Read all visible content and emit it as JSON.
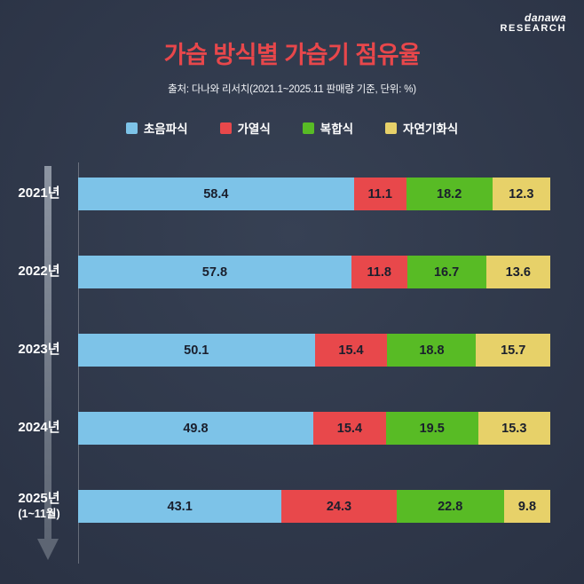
{
  "logo": {
    "line1": "danawa",
    "line2": "RESEARCH"
  },
  "header": {
    "title": "가습 방식별 가습기 점유율",
    "subtitle": "출처: 다나와 리서치(2021.1~2025.11 판매량 기준, 단위: %)"
  },
  "colors": {
    "background": "#2b3345",
    "title": "#e8474b",
    "bar_value_text": "#1a1f2d",
    "year_label_text": "#ffffff",
    "timeline_arrow": "#6b7380"
  },
  "chart_data": {
    "type": "bar",
    "stacked": true,
    "orientation": "horizontal",
    "unit": "%",
    "xlim": [
      0,
      100
    ],
    "legend_position": "top",
    "categories": [
      "2021년",
      "2022년",
      "2023년",
      "2024년",
      "2025년"
    ],
    "category_sublabels": [
      "",
      "",
      "",
      "",
      "(1~11월)"
    ],
    "series": [
      {
        "name": "초음파식",
        "key": "ultrasonic",
        "color": "#7dc3e8",
        "values": [
          58.4,
          57.8,
          50.1,
          49.8,
          43.1
        ]
      },
      {
        "name": "가열식",
        "key": "heated",
        "color": "#e8484b",
        "values": [
          11.1,
          11.8,
          15.4,
          15.4,
          24.3
        ]
      },
      {
        "name": "복합식",
        "key": "hybrid",
        "color": "#58bb25",
        "values": [
          18.2,
          16.7,
          18.8,
          19.5,
          22.8
        ]
      },
      {
        "name": "자연기화식",
        "key": "natural-evaporative",
        "color": "#e7d169",
        "values": [
          12.3,
          13.6,
          15.7,
          15.3,
          9.8
        ]
      }
    ]
  }
}
